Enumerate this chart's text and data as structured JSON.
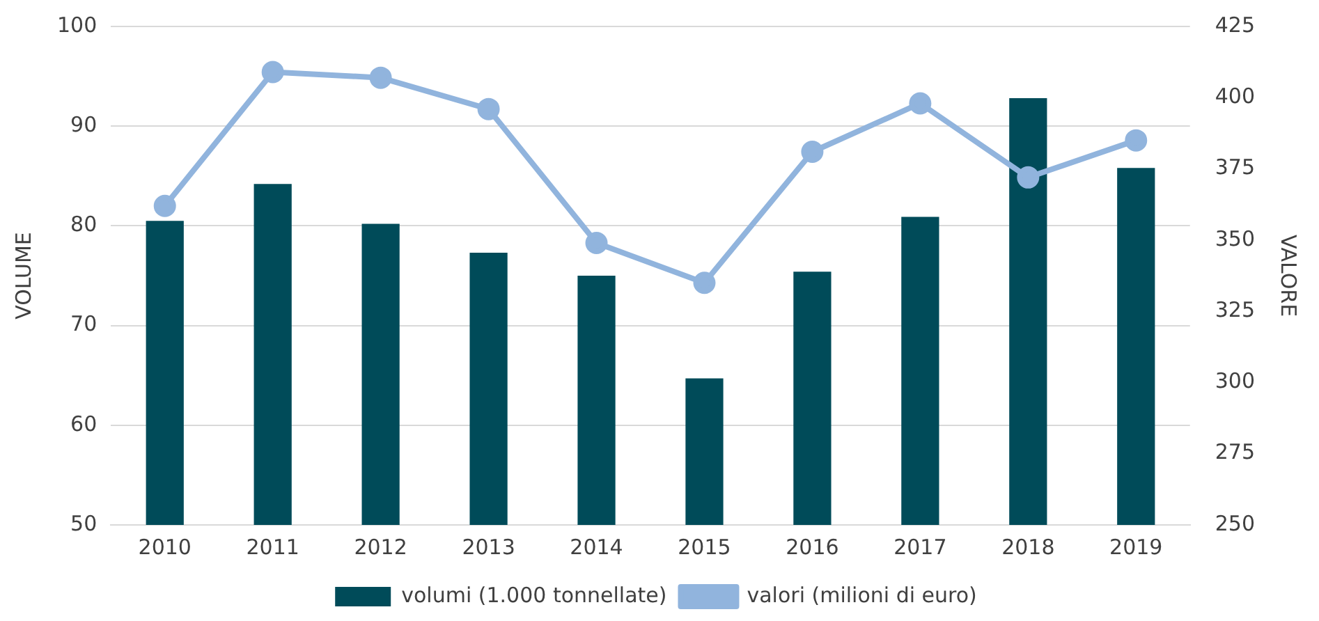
{
  "chart_data": {
    "type": "bar",
    "ylabel": "VOLUME",
    "y2label": "VALORE",
    "categories": [
      "2010",
      "2011",
      "2012",
      "2013",
      "2014",
      "2015",
      "2016",
      "2017",
      "2018",
      "2019"
    ],
    "series": [
      {
        "name": "volumi (1.000 tonnellate)",
        "color": "#004b59",
        "values": [
          80.5,
          84.2,
          80.2,
          77.3,
          75,
          64.7,
          75.4,
          80.9,
          92.8,
          85.8
        ]
      },
      {
        "name": "valori (milioni di euro)",
        "type": "line",
        "axis": "y2",
        "color": "#91b4dd",
        "values": [
          362,
          409,
          407,
          396,
          349,
          335,
          381,
          398,
          372,
          385
        ]
      }
    ],
    "ylim": [
      50,
      100
    ],
    "yticks": [
      50,
      60,
      70,
      80,
      90,
      100
    ],
    "y2lim": [
      250,
      425
    ],
    "y2ticks": [
      250,
      275,
      300,
      325,
      350,
      375,
      400,
      425
    ],
    "grid": "y",
    "legend": "bottom",
    "marker": "circle"
  }
}
